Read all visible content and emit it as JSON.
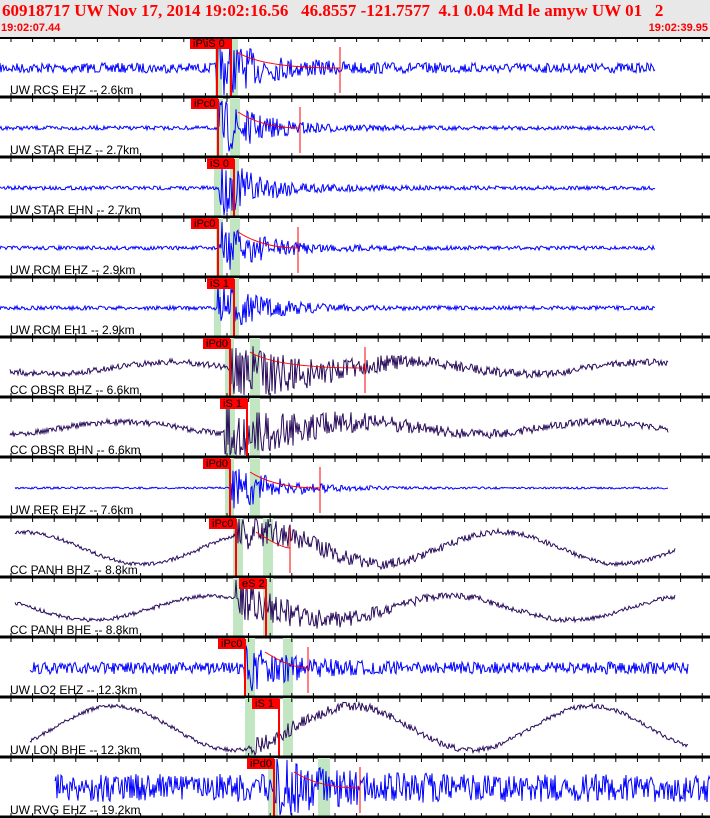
{
  "header": {
    "title": "60918717 UW Nov 17, 2014 19:02:16.56   46.8557 -121.7577  4.1 0.04 Md le amyw UW 01   2",
    "start_time": "19:02:07.44",
    "end_time": "19:02:39.95"
  },
  "colors": {
    "header_text": "#ff0000",
    "pick": "#ff0000",
    "window": "#c2e6c2",
    "trace_short_period": "#0000ff",
    "trace_broadband": "#2a0c5c"
  },
  "traces": [
    {
      "label": "UW RCS EHZ -- 2.6km",
      "pick": "iP\\iS 0",
      "color": "#0000ff"
    },
    {
      "label": "UW STAR EHZ -- 2.7km",
      "pick": "iPc0",
      "color": "#0000ff"
    },
    {
      "label": "UW STAR EHN -- 2.7km",
      "pick": "iS 0",
      "color": "#0000ff"
    },
    {
      "label": "UW RCM EHZ -- 2.9km",
      "pick": "iPc0",
      "color": "#0000ff"
    },
    {
      "label": "UW RCM EH1 -- 2.9km",
      "pick": "iS 1",
      "color": "#0000ff"
    },
    {
      "label": "CC OBSR BHZ -- 6.6km",
      "pick": "iPd0",
      "color": "#2a0c5c"
    },
    {
      "label": "CC OBSR BHN -- 6.6km",
      "pick": "iS 1",
      "color": "#2a0c5c"
    },
    {
      "label": "UW RER EHZ -- 7.6km",
      "pick": "iPd0",
      "color": "#0000ff"
    },
    {
      "label": "CC PANH BHZ -- 8.8km",
      "pick": "iPc0",
      "color": "#2a0c5c"
    },
    {
      "label": "CC PANH BHE -- 8.8km",
      "pick": "eS 2",
      "color": "#2a0c5c"
    },
    {
      "label": "UW LO2 EHZ -- 12.3km",
      "pick": "iPc0",
      "color": "#0000ff"
    },
    {
      "label": "UW LON BHE -- 12.3km",
      "pick": "iS 1",
      "color": "#2a0c5c"
    },
    {
      "label": "UW RVG EHZ -- 19.2km",
      "pick": "iPd0",
      "color": "#0000ff"
    }
  ]
}
